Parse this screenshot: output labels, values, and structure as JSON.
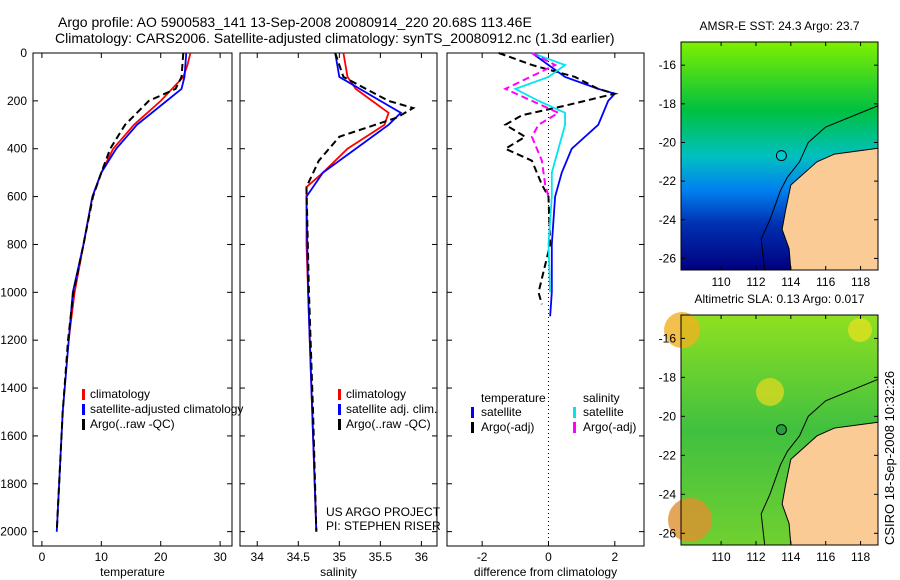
{
  "title_line1": "Argo profile: AO 5900583_141 13-Sep-2008 20080914_220 20.68S 113.46E",
  "title_line2": "Climatology: CARS2006. Satellite-adjusted climatology: synTS_20080912.nc (1.3d earlier)",
  "colors": {
    "climatology": "#ff0000",
    "satellite": "#0000ff",
    "argo": "#000000",
    "sal_satellite": "#00e5ee",
    "sal_argo": "#ff00ff",
    "land": "#fbcb96"
  },
  "chart_data": [
    {
      "type": "line",
      "id": "temperature",
      "xlabel": "temperature",
      "ylabel": "",
      "xlim": [
        -1.5,
        32
      ],
      "ylim": [
        2060,
        0
      ],
      "xticks": [
        0,
        10,
        20,
        30
      ],
      "yticks": [
        0,
        200,
        400,
        600,
        800,
        1000,
        1200,
        1400,
        1600,
        1800,
        2000
      ],
      "legend": [
        "climatology",
        "satellite-adjusted climatology",
        "Argo(..raw -QC)"
      ],
      "series": [
        {
          "name": "climatology",
          "color": "#ff0000",
          "dash": false,
          "depth": [
            0,
            50,
            100,
            200,
            300,
            400,
            500,
            600,
            800,
            1000,
            1200
          ],
          "values": [
            25,
            24.5,
            23.8,
            20,
            15.5,
            12,
            10,
            8.5,
            7,
            5.5,
            4.5
          ]
        },
        {
          "name": "satellite-adjusted climatology",
          "color": "#0000ff",
          "dash": false,
          "depth": [
            0,
            100,
            150,
            200,
            300,
            400,
            500,
            600,
            800,
            1000,
            1500,
            2000
          ],
          "values": [
            24.3,
            24,
            23.5,
            21,
            16,
            12.5,
            10,
            8.5,
            7,
            5.2,
            3.5,
            2.5
          ]
        },
        {
          "name": "Argo(..raw -QC)",
          "color": "#000000",
          "dash": true,
          "depth": [
            0,
            100,
            150,
            200,
            300,
            400,
            500,
            600,
            800,
            1000,
            1200,
            1500,
            2000
          ],
          "values": [
            23.8,
            23.5,
            22.5,
            18,
            14,
            11.5,
            10,
            8.6,
            7,
            5.3,
            4.4,
            3.5,
            2.5
          ]
        }
      ]
    },
    {
      "type": "line",
      "id": "salinity",
      "xlabel": "salinity",
      "ylabel": "",
      "xlim": [
        33.79,
        36.19
      ],
      "ylim": [
        2060,
        0
      ],
      "xticks": [
        34,
        34.5,
        35,
        35.5,
        36
      ],
      "legend": [
        "climatology",
        "satellite adj. clim.",
        "Argo(..raw -QC)"
      ],
      "annotation": [
        "US ARGO PROJECT",
        "PI: STEPHEN RISER"
      ],
      "series": [
        {
          "name": "climatology",
          "color": "#ff0000",
          "dash": false,
          "depth": [
            0,
            100,
            150,
            200,
            250,
            300,
            400,
            500,
            560,
            800,
            1000,
            2000
          ],
          "values": [
            35.05,
            35.1,
            35.2,
            35.4,
            35.6,
            35.55,
            35.1,
            34.8,
            34.6,
            34.6,
            34.62,
            34.72
          ]
        },
        {
          "name": "satellite adj. clim.",
          "color": "#0000ff",
          "dash": false,
          "depth": [
            0,
            100,
            200,
            250,
            300,
            400,
            500,
            600,
            1000,
            2000
          ],
          "values": [
            34.95,
            35.0,
            35.5,
            35.75,
            35.6,
            35.2,
            34.8,
            34.6,
            34.62,
            34.72
          ]
        },
        {
          "name": "Argo(..raw -QC)",
          "color": "#000000",
          "dash": true,
          "depth": [
            0,
            100,
            200,
            230,
            270,
            350,
            450,
            560,
            1000,
            1500,
            2000
          ],
          "values": [
            34.95,
            35.05,
            35.6,
            35.9,
            35.7,
            35.0,
            34.75,
            34.6,
            34.63,
            34.68,
            34.72
          ]
        }
      ]
    },
    {
      "type": "line",
      "id": "difference",
      "xlabel": "difference from climatology",
      "ylabel": "",
      "xlim": [
        -3.06,
        2.88
      ],
      "ylim": [
        2060,
        0
      ],
      "xticks": [
        -2,
        0,
        2
      ],
      "legend_headers": [
        "temperature",
        "salinity"
      ],
      "legend": [
        "satellite",
        "Argo(-adj)",
        "satellite",
        "Argo(-adj)"
      ],
      "series": [
        {
          "name": "temperature satellite",
          "color": "#0000ff",
          "dash": false,
          "depth": [
            0,
            100,
            150,
            170,
            200,
            300,
            400,
            500,
            600,
            800,
            1000,
            1100
          ],
          "values": [
            -0.5,
            0.5,
            1.5,
            2,
            1.8,
            1.5,
            0.7,
            0.4,
            0.2,
            0.1,
            0.1,
            0.05
          ]
        },
        {
          "name": "temperature Argo(-adj)",
          "color": "#000000",
          "dash": true,
          "depth": [
            0,
            50,
            100,
            150,
            170,
            220,
            260,
            300,
            350,
            400,
            450,
            550,
            600,
            800,
            1000,
            1050
          ],
          "values": [
            -1.5,
            -0.5,
            0.8,
            1.5,
            2.0,
            0.5,
            -0.8,
            -1.3,
            -0.7,
            -1.3,
            -0.5,
            -0.2,
            0,
            0.05,
            -0.3,
            -0.2
          ]
        },
        {
          "name": "salinity satellite",
          "color": "#00e5ee",
          "dash": false,
          "depth": [
            0,
            50,
            100,
            150,
            200,
            250,
            300,
            400,
            500,
            600,
            800,
            1000
          ],
          "values": [
            -0.5,
            0.5,
            0,
            -1.0,
            -0.3,
            0.5,
            0.5,
            0.3,
            0.1,
            0.1,
            0,
            0.05
          ]
        },
        {
          "name": "salinity Argo(-adj)",
          "color": "#ff00ff",
          "dash": true,
          "depth": [
            0,
            50,
            150,
            200,
            250,
            300,
            350,
            450,
            550,
            600
          ],
          "values": [
            -0.5,
            0.2,
            -1.3,
            -0.5,
            0.3,
            -0.3,
            -0.5,
            -0.2,
            -0.1,
            0
          ]
        }
      ]
    },
    {
      "type": "heatmap",
      "id": "sst_map",
      "title": "AMSR-E SST: 24.3 Argo: 23.7",
      "xlim": [
        107.7,
        119
      ],
      "ylim": [
        -26.6,
        -14.8
      ],
      "xticks": [
        110,
        112,
        114,
        116,
        118
      ],
      "yticks": [
        -16,
        -18,
        -20,
        -22,
        -24,
        -26
      ],
      "marker": [
        113.46,
        -20.68
      ]
    },
    {
      "type": "heatmap",
      "id": "sla_map",
      "title": "Altimetric SLA: 0.13 Argo: 0.017",
      "xlim": [
        107.7,
        119
      ],
      "ylim": [
        -26.6,
        -14.8
      ],
      "xticks": [
        110,
        112,
        114,
        116,
        118
      ],
      "yticks": [
        -16,
        -18,
        -20,
        -22,
        -24,
        -26
      ],
      "marker": [
        113.46,
        -20.68
      ]
    }
  ],
  "side_label": "CSIRO 18-Sep-2008 10:32:26"
}
